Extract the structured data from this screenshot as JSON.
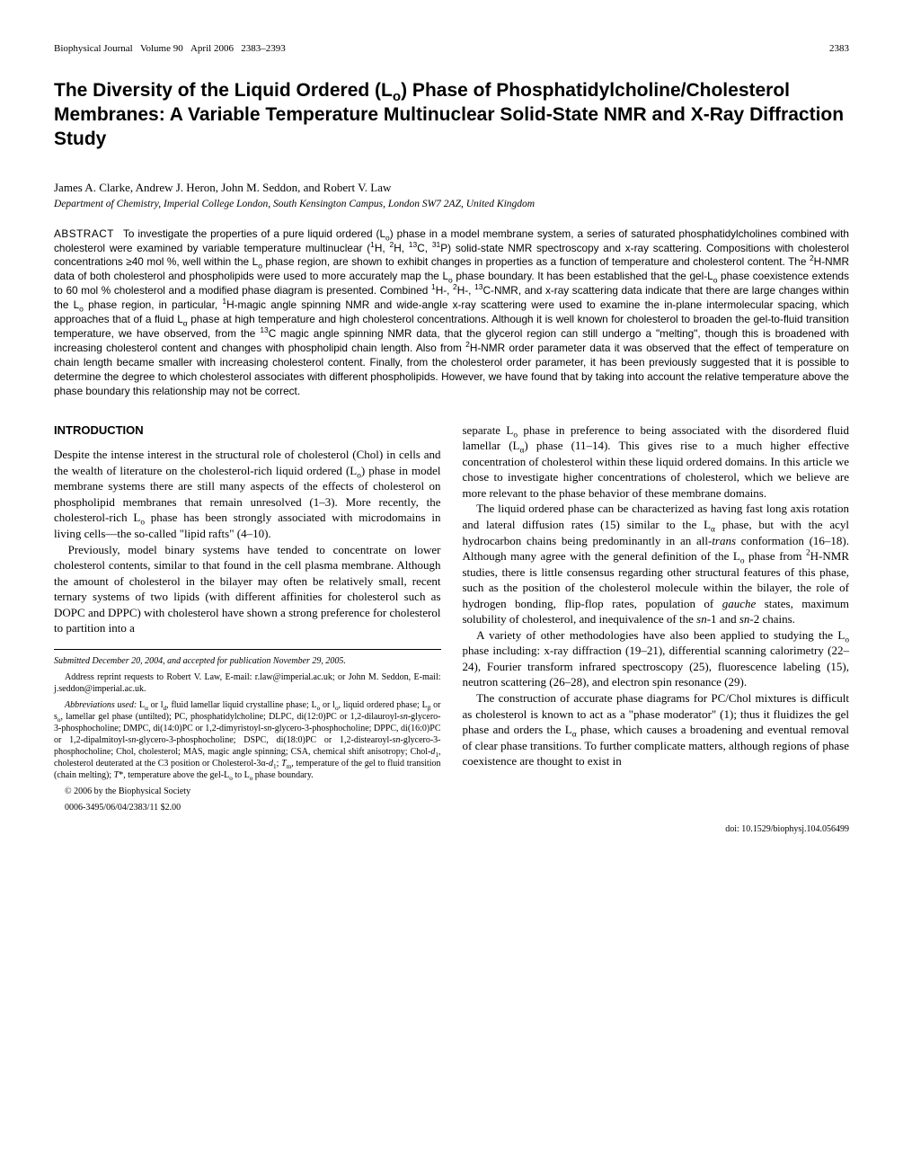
{
  "header": {
    "journal": "Biophysical Journal",
    "volume": "Volume 90",
    "month": "April 2006",
    "pages": "2383–2393",
    "page_number": "2383"
  },
  "title_html": "The Diversity of the Liquid Ordered (L<sub>o</sub>) Phase of Phosphatidylcholine/Cholesterol Membranes: A Variable Temperature Multinuclear Solid-State NMR and X-Ray Diffraction Study",
  "authors": "James A. Clarke, Andrew J. Heron, John M. Seddon, and Robert V. Law",
  "affiliation": "Department of Chemistry, Imperial College London, South Kensington Campus, London SW7 2AZ, United Kingdom",
  "abstract_label": "ABSTRACT",
  "abstract_html": "To investigate the properties of a pure liquid ordered (L<sub>o</sub>) phase in a model membrane system, a series of saturated phosphatidylcholines combined with cholesterol were examined by variable temperature multinuclear (<sup>1</sup>H, <sup>2</sup>H, <sup>13</sup>C, <sup>31</sup>P) solid-state NMR spectroscopy and x-ray scattering. Compositions with cholesterol concentrations ≥40 mol %, well within the L<sub>o</sub> phase region, are shown to exhibit changes in properties as a function of temperature and cholesterol content. The <sup>2</sup>H-NMR data of both cholesterol and phospholipids were used to more accurately map the L<sub>o</sub> phase boundary. It has been established that the gel-L<sub>o</sub> phase coexistence extends to 60 mol % cholesterol and a modified phase diagram is presented. Combined <sup>1</sup>H-, <sup>2</sup>H-, <sup>13</sup>C-NMR, and x-ray scattering data indicate that there are large changes within the L<sub>o</sub> phase region, in particular, <sup>1</sup>H-magic angle spinning NMR and wide-angle x-ray scattering were used to examine the in-plane intermolecular spacing, which approaches that of a fluid L<sub>α</sub> phase at high temperature and high cholesterol concentrations. Although it is well known for cholesterol to broaden the gel-to-fluid transition temperature, we have observed, from the <sup>13</sup>C magic angle spinning NMR data, that the glycerol region can still undergo a \"melting\", though this is broadened with increasing cholesterol content and changes with phospholipid chain length. Also from <sup>2</sup>H-NMR order parameter data it was observed that the effect of temperature on chain length became smaller with increasing cholesterol content. Finally, from the cholesterol order parameter, it has been previously suggested that it is possible to determine the degree to which cholesterol associates with different phospholipids. However, we have found that by taking into account the relative temperature above the phase boundary this relationship may not be correct.",
  "introduction_heading": "INTRODUCTION",
  "left_col": {
    "p1_html": "Despite the intense interest in the structural role of cholesterol (Chol) in cells and the wealth of literature on the cholesterol-rich liquid ordered (L<sub>o</sub>) phase in model membrane systems there are still many aspects of the effects of cholesterol on phospholipid membranes that remain unresolved (1–3). More recently, the cholesterol-rich L<sub>o</sub> phase has been strongly associated with microdomains in living cells—the so-called \"lipid rafts\" (4–10).",
    "p2_html": "Previously, model binary systems have tended to concentrate on lower cholesterol contents, similar to that found in the cell plasma membrane. Although the amount of cholesterol in the bilayer may often be relatively small, recent ternary systems of two lipids (with different affinities for cholesterol such as DOPC and DPPC) with cholesterol have shown a strong preference for cholesterol to partition into a"
  },
  "right_col": {
    "p1_html": "separate L<sub>o</sub> phase in preference to being associated with the disordered fluid lamellar (L<sub>α</sub>) phase (11–14). This gives rise to a much higher effective concentration of cholesterol within these liquid ordered domains. In this article we chose to investigate higher concentrations of cholesterol, which we believe are more relevant to the phase behavior of these membrane domains.",
    "p2_html": "The liquid ordered phase can be characterized as having fast long axis rotation and lateral diffusion rates (15) similar to the L<sub>α</sub> phase, but with the acyl hydrocarbon chains being predominantly in an all-<span class=\"ital\">trans</span> conformation (16–18). Although many agree with the general definition of the L<sub>o</sub> phase from <sup>2</sup>H-NMR studies, there is little consensus regarding other structural features of this phase, such as the position of the cholesterol molecule within the bilayer, the role of hydrogen bonding, flip-flop rates, population of <span class=\"ital\">gauche</span> states, maximum solubility of cholesterol, and inequivalence of the <span class=\"ital\">sn</span>-1 and <span class=\"ital\">sn</span>-2 chains.",
    "p3_html": "A variety of other methodologies have also been applied to studying the L<sub>o</sub> phase including: x-ray diffraction (19–21), differential scanning calorimetry (22–24), Fourier transform infrared spectroscopy (25), fluorescence labeling (15), neutron scattering (26–28), and electron spin resonance (29).",
    "p4_html": "The construction of accurate phase diagrams for PC/Chol mixtures is difficult as cholesterol is known to act as a \"phase moderator\" (1); thus it fluidizes the gel phase and orders the L<sub>α</sub> phase, which causes a broadening and eventual removal of clear phase transitions. To further complicate matters, although regions of phase coexistence are thought to exist in"
  },
  "footnotes": {
    "submitted_html": "<span class=\"ital\">Submitted December 20, 2004, and accepted for publication November 29, 2005.</span>",
    "address": "Address reprint requests to Robert V. Law, E-mail: r.law@imperial.ac.uk; or John M. Seddon, E-mail: j.seddon@imperial.ac.uk.",
    "abbrev_html": "<span class=\"ital\">Abbreviations used:</span> L<sub>α</sub> or l<sub>d</sub>, fluid lamellar liquid crystalline phase; L<sub>o</sub> or l<sub>o</sub>, liquid ordered phase; L<sub>β</sub> or s<sub>o</sub>, lamellar gel phase (untilted); PC, phosphatidylcholine; DLPC, di(12:0)PC or 1,2-dilauroyl-<span class=\"ital\">sn</span>-glycero-3-phosphocholine; DMPC, di(14:0)PC or 1,2-dimyristoyl-<span class=\"ital\">sn</span>-glycero-3-phosphocholine; DPPC, di(16:0)PC or 1,2-dipalmitoyl-<span class=\"ital\">sn</span>-glycero-3-phosphocholine; DSPC, di(18:0)PC or 1,2-distearoyl-<span class=\"ital\">sn</span>-glycero-3-phosphocholine; Chol, cholesterol; MAS, magic angle spinning; CSA, chemical shift anisotropy; Chol-<span class=\"ital\">d</span><sub>1</sub>, cholesterol deuterated at the C3 position or Cholesterol-3α-<span class=\"ital\">d</span><sub>1</sub>; <span class=\"ital\">T</span><sub>m</sub>, temperature of the gel to fluid transition (chain melting); <span class=\"ital\">T</span>*, temperature above the gel-L<sub>o</sub> to L<sub>o</sub> phase boundary.",
    "copyright": "© 2006 by the Biophysical Society",
    "issn": "0006-3495/06/04/2383/11   $2.00"
  },
  "doi": "doi: 10.1529/biophysj.104.056499"
}
